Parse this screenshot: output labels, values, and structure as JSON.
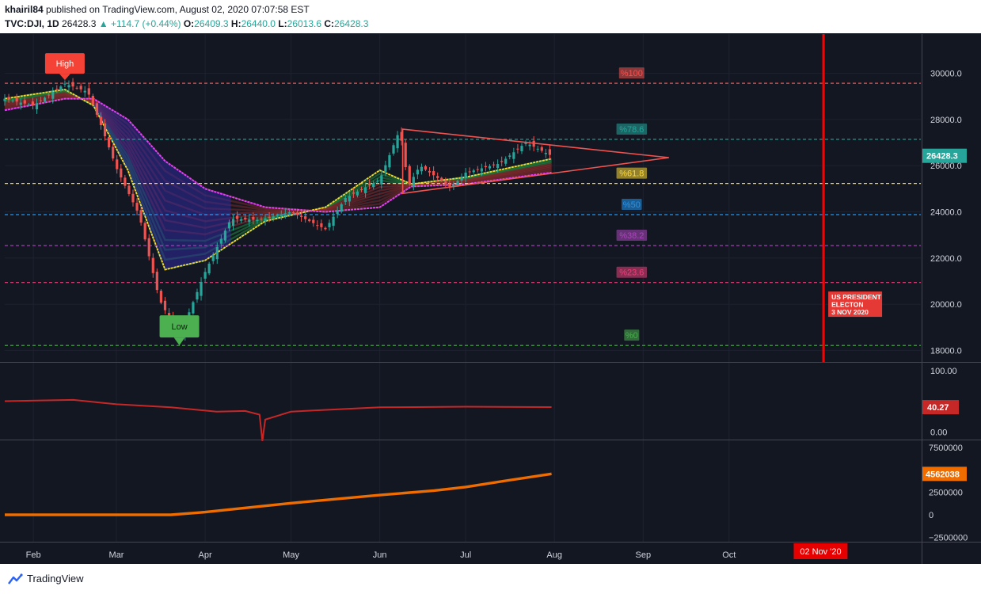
{
  "header": {
    "author": "khairil84",
    "published_text": "published on TradingView.com, August 02, 2020 07:07:58 EST",
    "symbol": "TVC:DJI, 1D",
    "last": "26428.3",
    "change": "▲ +114.7 (+0.44%)",
    "o_label": "O:",
    "o": "26409.3",
    "h_label": "H:",
    "h": "26440.0",
    "l_label": "L:",
    "l": "26013.6",
    "c_label": "C:",
    "c": "26428.3"
  },
  "footer": {
    "brand": "TradingView",
    "logo_icon": "tradingview-logo-icon"
  },
  "colors": {
    "background": "#131722",
    "up": "#26a69a",
    "down": "#ef5350",
    "rsi": "#c62828",
    "obv": "#ef6c00",
    "election_line": "#ff0000"
  },
  "chart_data": {
    "type": "line",
    "title": "",
    "price_axis": {
      "ylim": [
        17500,
        31700
      ],
      "ticks": [
        "30000.0",
        "28000.0",
        "26000.0",
        "24000.0",
        "22000.0",
        "20000.0",
        "18000.0"
      ],
      "last_price_label": "26428.3",
      "last_price": 26428.3
    },
    "x_labels": [
      "Feb",
      "Mar",
      "Apr",
      "May",
      "Jun",
      "Jul",
      "Aug",
      "Sep",
      "Oct"
    ],
    "x_label_dates": [
      "2020-02-01",
      "2020-03-01",
      "2020-04-01",
      "2020-05-01",
      "2020-06-01",
      "2020-07-01",
      "2020-08-01",
      "2020-09-01",
      "2020-10-01"
    ],
    "x_range": [
      "2020-01-22",
      "2020-12-07"
    ],
    "date_marker": {
      "label": "02 Nov '20",
      "date": "2020-11-02"
    },
    "price_series": {
      "name": "TVC:DJI",
      "x": [
        "2020-01-22",
        "2020-02-01",
        "2020-02-12",
        "2020-02-20",
        "2020-02-24",
        "2020-03-01",
        "2020-03-09",
        "2020-03-16",
        "2020-03-23",
        "2020-04-01",
        "2020-04-10",
        "2020-04-20",
        "2020-05-01",
        "2020-05-13",
        "2020-05-20",
        "2020-06-01",
        "2020-06-08",
        "2020-06-11",
        "2020-06-15",
        "2020-06-26",
        "2020-07-01",
        "2020-07-13",
        "2020-07-22",
        "2020-07-31"
      ],
      "close": [
        28900,
        28600,
        29550,
        29200,
        27960,
        25900,
        23850,
        20200,
        18590,
        21400,
        23700,
        23650,
        24000,
        23250,
        24600,
        25400,
        27570,
        25120,
        26000,
        25050,
        25700,
        26100,
        27000,
        26428
      ]
    },
    "ribbon": {
      "name": "EMA ribbon",
      "x": [
        "2020-01-22",
        "2020-02-12",
        "2020-02-22",
        "2020-03-05",
        "2020-03-18",
        "2020-04-01",
        "2020-04-22",
        "2020-05-13",
        "2020-06-01",
        "2020-06-12",
        "2020-07-01",
        "2020-07-31"
      ],
      "fast": [
        28900,
        29300,
        28600,
        25800,
        21500,
        21900,
        23600,
        24200,
        25800,
        25200,
        25500,
        26300
      ],
      "slow": [
        28400,
        28900,
        28900,
        28000,
        26200,
        25000,
        24200,
        24000,
        24200,
        25100,
        25200,
        25700
      ]
    },
    "symmetrical_triangle": {
      "points": [
        [
          "2020-06-09",
          27580
        ],
        [
          "2020-09-10",
          26350
        ],
        [
          "2020-06-09",
          24800
        ]
      ]
    },
    "levels": {
      "labels": [
        "%100",
        "%78.6",
        "%61.8",
        "%50",
        "%38.2",
        "%23.6",
        "%0"
      ],
      "values": [
        29568,
        27140,
        25230,
        23880,
        22540,
        20940,
        18214
      ],
      "colors": [
        "#ef5350",
        "#26a69a",
        "#fdd835",
        "#2196f3",
        "#ab47bc",
        "#ec407a",
        "#4caf50"
      ]
    },
    "annotations": [
      {
        "text": "High",
        "date": "2020-02-12",
        "value": 29568
      },
      {
        "text": "Low",
        "date": "2020-03-23",
        "value": 18214
      }
    ],
    "election_event": {
      "date": "2020-11-03",
      "lines": [
        "US PRESIDENT",
        "ELECTON",
        "3 NOV 2020"
      ]
    },
    "rsi_panel": {
      "ticks": [
        "100.00",
        "0.00"
      ],
      "ylim": [
        -10,
        110
      ],
      "last_label": "40.27",
      "last": 40.27,
      "x": [
        "2020-01-22",
        "2020-02-15",
        "2020-03-01",
        "2020-03-20",
        "2020-04-05",
        "2020-04-15",
        "2020-04-20",
        "2020-04-21",
        "2020-04-22",
        "2020-05-01",
        "2020-06-01",
        "2020-07-01",
        "2020-07-31"
      ],
      "values": [
        50,
        52,
        45,
        40,
        33,
        34,
        28,
        -15,
        20,
        33,
        40,
        41,
        40.27
      ]
    },
    "obv_panel": {
      "ticks": [
        "7500000",
        "2500000",
        "0",
        "−2500000"
      ],
      "ylim": [
        -3000000,
        8300000
      ],
      "last_label": "4562038",
      "last": 4562038,
      "x": [
        "2020-01-22",
        "2020-03-20",
        "2020-04-01",
        "2020-05-01",
        "2020-06-01",
        "2020-06-20",
        "2020-07-01",
        "2020-07-15",
        "2020-07-31"
      ],
      "values": [
        0,
        0,
        300000,
        1300000,
        2200000,
        2700000,
        3100000,
        3800000,
        4562038
      ]
    }
  }
}
